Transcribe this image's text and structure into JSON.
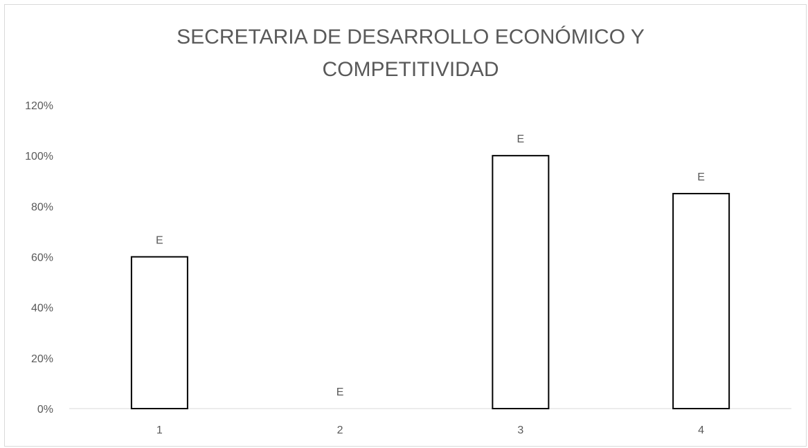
{
  "chart_data": {
    "type": "bar",
    "title": "SECRETARIA DE DESARROLLO ECONÓMICO Y COMPETITIVIDAD",
    "title_lines": [
      "SECRETARIA DE DESARROLLO ECONÓMICO Y",
      "COMPETITIVIDAD"
    ],
    "categories": [
      "1",
      "2",
      "3",
      "4"
    ],
    "values": [
      0.6,
      0.0,
      1.0,
      0.85
    ],
    "data_labels": [
      "E",
      "E",
      "E",
      "E"
    ],
    "y_ticks": [
      "0%",
      "20%",
      "40%",
      "60%",
      "80%",
      "100%",
      "120%"
    ],
    "ylim": [
      0,
      1.2
    ],
    "xlabel": "",
    "ylabel": "",
    "grid": false,
    "legend": "none",
    "bar_fill": "#ffffff",
    "bar_stroke": "#000000",
    "axis_color": "#d9d9d9",
    "text_color": "#595959"
  }
}
